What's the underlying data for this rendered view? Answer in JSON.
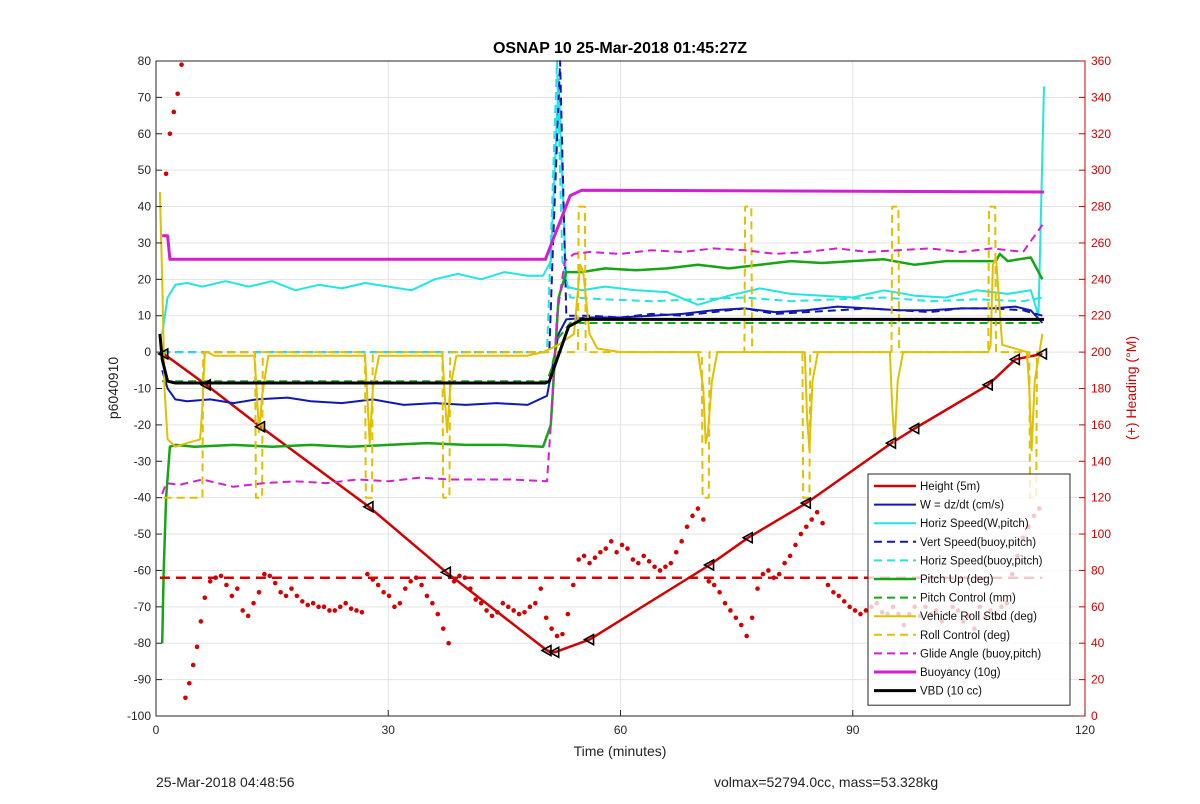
{
  "footer": {
    "timestamp": "25-Mar-2018 04:48:56",
    "volume_mass": "volmax=52794.0cc, mass=53.328kg"
  },
  "chart_data": {
    "type": "line",
    "title": "OSNAP 10 25-Mar-2018 01:45:27Z",
    "xlabel": "Time (minutes)",
    "ylabel_left": "p6040910",
    "ylabel_right": "(+) Heading (°M)",
    "xlim": [
      0,
      120
    ],
    "ylim_left": [
      -100,
      80
    ],
    "ylim_right": [
      0,
      360
    ],
    "xticks": [
      0,
      30,
      60,
      90,
      120
    ],
    "yticks_left": [
      -100,
      -90,
      -80,
      -70,
      -60,
      -50,
      -40,
      -30,
      -20,
      -10,
      0,
      10,
      20,
      30,
      40,
      50,
      60,
      70,
      80
    ],
    "yticks_right": [
      0,
      20,
      40,
      60,
      80,
      100,
      120,
      140,
      160,
      180,
      200,
      220,
      240,
      260,
      280,
      300,
      320,
      340,
      360
    ],
    "grid": true,
    "legend_position": "bottom-right",
    "series": [
      {
        "name": "Height (5m)",
        "color": "#d40000",
        "width": 2.5,
        "dash": "",
        "markers": "triangles",
        "x": [
          1,
          6.5,
          13.5,
          27.5,
          37.5,
          50.5,
          51.5,
          56,
          71.5,
          76.5,
          84,
          95,
          98,
          107.5,
          111,
          114.5
        ],
        "y": [
          -0.5,
          -9,
          -20.5,
          -42.5,
          -60.5,
          -82,
          -82.5,
          -79,
          -58.5,
          -51,
          -41.5,
          -25,
          -21,
          -9,
          -2,
          -0.5
        ]
      },
      {
        "name": "W = dz/dt (cm/s)",
        "color": "#1018b4",
        "width": 2,
        "dash": "",
        "x": [
          0.8,
          1.5,
          2.5,
          4,
          7,
          10,
          13,
          17,
          20,
          24,
          28,
          32,
          36,
          40,
          44,
          48,
          50.5,
          52,
          53,
          56,
          60,
          64,
          68,
          72,
          76,
          80,
          84,
          88,
          92,
          96,
          100,
          104,
          108,
          111,
          113,
          114.5
        ],
        "y": [
          -5,
          -10,
          -13,
          -13.5,
          -13,
          -14,
          -13,
          -12.5,
          -13.5,
          -14,
          -13,
          -14.5,
          -14,
          -14.5,
          -14,
          -14.5,
          -12,
          5,
          9,
          9.5,
          9.5,
          10,
          10.5,
          11.5,
          12,
          11,
          11.5,
          12.5,
          12,
          11.5,
          11.5,
          12,
          12,
          12.5,
          11.5,
          8
        ]
      },
      {
        "name": "Horiz Speed(W,pitch)",
        "color": "#22e4e4",
        "width": 2,
        "dash": "",
        "x": [
          0.8,
          1.5,
          2.5,
          4,
          6,
          9,
          12,
          15,
          18,
          21,
          24,
          27,
          30,
          33,
          36,
          39,
          42,
          45,
          48,
          50,
          51,
          52,
          53,
          55,
          58,
          62,
          66,
          70,
          74,
          78,
          82,
          86,
          90,
          94,
          98,
          102,
          106,
          110,
          113,
          114,
          114.7
        ],
        "y": [
          5,
          15,
          18.5,
          19,
          18,
          19.5,
          18,
          19.5,
          17,
          18.5,
          17.5,
          19,
          18,
          17,
          20,
          21.5,
          20,
          22,
          21,
          21,
          25,
          75,
          18,
          17,
          18,
          17,
          16.5,
          13,
          15.5,
          17.5,
          16,
          15.5,
          15,
          17,
          15.5,
          15,
          17,
          16,
          17,
          10,
          73
        ]
      },
      {
        "name": "Vert Speed(buoy,pitch)",
        "color": "#1018b4",
        "width": 2,
        "dash": "8,5",
        "x": [
          0.8,
          50.8,
          51.3,
          52.2,
          53,
          56,
          60,
          64,
          68,
          72,
          76,
          80,
          84,
          88,
          92,
          96,
          100,
          104,
          108,
          112,
          114.5
        ],
        "y": [
          0,
          0,
          30,
          80,
          10,
          10,
          9.5,
          10.5,
          10,
          11,
          12,
          10.5,
          11,
          11.5,
          12,
          11.5,
          11,
          12,
          12,
          11.5,
          10
        ]
      },
      {
        "name": "Horiz Speed(buoy,pitch)",
        "color": "#22e4e4",
        "width": 2,
        "dash": "8,5",
        "x": [
          0.8,
          50.5,
          51,
          51.8,
          52.5,
          53.5,
          58,
          64,
          70,
          76,
          82,
          88,
          94,
          100,
          106,
          112,
          114.5
        ],
        "y": [
          0,
          0,
          30,
          80,
          25,
          15,
          14.5,
          14,
          14.5,
          15,
          14,
          14.5,
          15,
          14,
          14.5,
          14,
          15
        ]
      },
      {
        "name": "Pitch Up (deg)",
        "color": "#16a516",
        "width": 2.5,
        "dash": "",
        "x": [
          0.8,
          1,
          1.3,
          1.8,
          2.5,
          5,
          10,
          15,
          20,
          25,
          30,
          35,
          40,
          45,
          50,
          51,
          52,
          53,
          55,
          58,
          62,
          66,
          70,
          74,
          78,
          82,
          86,
          90,
          94,
          98,
          102,
          106,
          108.5,
          109,
          110,
          113,
          114.5
        ],
        "y": [
          -80,
          -60,
          -40,
          -26,
          -25.5,
          -26,
          -25.5,
          -26,
          -25.5,
          -26,
          -25.5,
          -25,
          -25.5,
          -25.5,
          -26,
          -20,
          15,
          22,
          22,
          23,
          22.5,
          23,
          24,
          23,
          24,
          25,
          24.5,
          25,
          25.5,
          24,
          25,
          25,
          25,
          27,
          25,
          26,
          20
        ]
      },
      {
        "name": "Pitch Control (mm)",
        "color": "#16a516",
        "width": 2,
        "dash": "8,5",
        "x": [
          0.8,
          50.5,
          51,
          52,
          53.5,
          114.5
        ],
        "y": [
          -8,
          -8,
          -5,
          4,
          8,
          8
        ]
      },
      {
        "name": "Vehicle Roll Stbd (deg)",
        "color": "#e0c000",
        "width": 2,
        "dash": "",
        "x": [
          0.5,
          0.8,
          1.1,
          1.5,
          2.5,
          4,
          5.7,
          6,
          6.3,
          6.7,
          7.5,
          12.7,
          13,
          13.3,
          13.7,
          14.5,
          27,
          27.3,
          27.6,
          28,
          28.8,
          37,
          37.3,
          37.6,
          38,
          38.8,
          48,
          50,
          52,
          54,
          54.8,
          55.2,
          56,
          57,
          60,
          65,
          70,
          70.7,
          71,
          71.3,
          71.8,
          72.5,
          80,
          83.8,
          84.1,
          84.4,
          84.8,
          85.5,
          92,
          94.8,
          95.1,
          95.4,
          95.8,
          96.5,
          106,
          107.5,
          107.8,
          108.1,
          108.5,
          109.3,
          112.5,
          112.8,
          113.1,
          113.5,
          114.5
        ],
        "y": [
          44,
          20,
          -10,
          -24,
          -26,
          -25,
          -24,
          -15,
          0,
          0,
          -1,
          -1,
          -10,
          -22,
          -12,
          -1,
          -1,
          -12,
          -25,
          -10,
          -1,
          -1,
          -12,
          -22,
          -10,
          -1,
          -1,
          0,
          2,
          5,
          24,
          22,
          5,
          1,
          0,
          0,
          0,
          -10,
          -25,
          -22,
          -8,
          0,
          0,
          0,
          -18,
          -27,
          -8,
          0,
          0,
          0,
          -15,
          -25,
          -8,
          0,
          0,
          0,
          2,
          24,
          26,
          2,
          0,
          -10,
          -27,
          -8,
          5
        ]
      },
      {
        "name": "Roll Control (deg)",
        "color": "#e0c000",
        "width": 2,
        "dash": "8,5",
        "x": [
          1,
          6,
          6.1,
          12.8,
          12.9,
          13.7,
          13.8,
          27,
          27.1,
          27.9,
          28,
          37,
          37.1,
          37.9,
          38,
          50,
          52,
          54.5,
          54.6,
          55.4,
          55.5,
          70.5,
          70.6,
          71.4,
          71.5,
          76,
          76.1,
          76.9,
          77,
          83.5,
          83.6,
          84.4,
          84.5,
          95,
          95.1,
          95.9,
          96,
          107.5,
          107.6,
          108.4,
          108.5,
          112.8,
          112.9,
          113.7,
          113.8,
          114.5
        ],
        "y": [
          -40,
          -40,
          0,
          0,
          -40,
          -40,
          0,
          0,
          -40,
          -40,
          0,
          0,
          -40,
          -40,
          0,
          0,
          0,
          0,
          40,
          40,
          0,
          0,
          -40,
          -40,
          0,
          0,
          40,
          40,
          0,
          0,
          -40,
          -40,
          0,
          0,
          40,
          40,
          0,
          0,
          40,
          40,
          0,
          0,
          -40,
          -40,
          0,
          0
        ]
      },
      {
        "name": "Glide Angle (buoy,pitch)",
        "color": "#d21fd2",
        "width": 2,
        "dash": "8,5",
        "x": [
          0.8,
          1.3,
          3,
          6,
          10,
          14,
          18,
          22,
          26,
          30,
          34,
          38,
          42,
          46,
          50.5,
          51,
          51.8,
          52.8,
          54,
          56,
          60,
          64,
          68,
          72,
          76,
          80,
          84,
          88,
          92,
          96,
          100,
          104,
          108,
          112,
          114.5
        ],
        "y": [
          -39,
          -36,
          -36.5,
          -35,
          -37,
          -36,
          -35.5,
          -36,
          -35,
          -35.5,
          -34.5,
          -35,
          -35,
          -35,
          -35.5,
          -20,
          10,
          25,
          27,
          27.5,
          27,
          28,
          27.5,
          28.5,
          28,
          27,
          27.5,
          28.5,
          27.5,
          28,
          28.5,
          27.5,
          28.5,
          27.5,
          35
        ]
      },
      {
        "name": "Buoyancy (10g)",
        "color": "#d21fd2",
        "width": 3,
        "dash": "",
        "x": [
          0.8,
          1.5,
          1.8,
          50.3,
          53.5,
          55,
          114.7
        ],
        "y": [
          32,
          32,
          25.5,
          25.5,
          43,
          44.5,
          44
        ]
      },
      {
        "name": "VBD (10 cc)",
        "color": "#000000",
        "width": 3,
        "dash": "",
        "x": [
          0.5,
          0.8,
          1.5,
          2.5,
          50.3,
          50.8,
          53.3,
          55,
          114.7
        ],
        "y": [
          5,
          -2,
          -8,
          -8.5,
          -8.5,
          -8,
          7,
          9,
          9
        ]
      },
      {
        "name": "",
        "color": "#d40000",
        "width": 2.5,
        "dash": "10,6",
        "x": [
          0.5,
          114.5
        ],
        "y": [
          -62,
          -62
        ]
      }
    ],
    "heading_points": {
      "color": "#d40000",
      "axis": "right",
      "x": [
        1.3,
        1.8,
        2.3,
        2.8,
        3.3,
        3.8,
        4.3,
        4.8,
        5.3,
        5.8,
        6.3,
        7,
        7.7,
        8.4,
        9.1,
        9.8,
        10.5,
        11.2,
        11.9,
        12.6,
        13.3,
        14,
        14.7,
        15.4,
        16.1,
        16.8,
        17.5,
        18.2,
        18.9,
        19.6,
        20.3,
        21,
        21.7,
        22.4,
        23.1,
        23.8,
        24.5,
        25.2,
        25.9,
        26.6,
        27.3,
        28,
        28.7,
        29.4,
        30.1,
        30.8,
        31.5,
        32.2,
        32.9,
        33.6,
        34.3,
        35,
        35.7,
        36.4,
        37.1,
        37.8,
        38.5,
        39.2,
        39.9,
        40.6,
        41.3,
        42,
        42.7,
        43.4,
        44.1,
        44.8,
        45.5,
        46.2,
        46.9,
        47.6,
        48.3,
        49,
        49.7,
        50.4,
        51.1,
        51.8,
        52.5,
        53.2,
        53.9,
        54.6,
        55.3,
        56,
        56.7,
        57.4,
        58.1,
        58.8,
        59.5,
        60.2,
        60.9,
        61.6,
        62.3,
        63,
        63.7,
        64.4,
        65.1,
        65.8,
        66.5,
        67.2,
        67.9,
        68.6,
        69.3,
        70,
        70.7,
        71.4,
        72.1,
        72.8,
        73.5,
        74.2,
        74.9,
        75.6,
        76.3,
        77,
        77.7,
        78.4,
        79.1,
        79.8,
        80.5,
        81.2,
        81.9,
        82.6,
        83.3,
        84,
        84.7,
        85.4,
        86.1,
        86.8,
        87.5,
        88.2,
        88.9,
        89.6,
        90.3,
        91,
        91.7,
        92.4,
        93.1,
        93.8,
        94.5,
        95.2,
        95.9,
        96.6,
        97.3,
        98,
        98.7,
        99.4,
        100.1,
        100.8,
        101.5,
        102.2,
        102.9,
        103.6,
        104.3,
        105,
        105.7,
        106.4,
        107.1,
        107.8,
        108.5,
        109.2,
        109.9,
        110.6,
        111.3,
        112,
        112.7,
        113.4,
        114.1
      ],
      "y": [
        298,
        320,
        332,
        342,
        358,
        10,
        18,
        28,
        38,
        52,
        65,
        74,
        76,
        77,
        72,
        66,
        70,
        58,
        55,
        62,
        68,
        78,
        77,
        73,
        68,
        66,
        70,
        66,
        63,
        61,
        62,
        60,
        60,
        58,
        58,
        60,
        62,
        59,
        58,
        57,
        78,
        75,
        72,
        68,
        66,
        60,
        62,
        70,
        74,
        76,
        72,
        66,
        62,
        56,
        48,
        40,
        74,
        77,
        76,
        70,
        64,
        62,
        58,
        55,
        57,
        62,
        60,
        58,
        56,
        57,
        60,
        62,
        70,
        54,
        48,
        44,
        45,
        56,
        72,
        86,
        88,
        84,
        87,
        90,
        92,
        96,
        90,
        94,
        92,
        86,
        84,
        88,
        85,
        82,
        80,
        82,
        84,
        90,
        96,
        104,
        110,
        114,
        108,
        74,
        72,
        68,
        62,
        58,
        54,
        50,
        44,
        54,
        70,
        78,
        80,
        76,
        78,
        84,
        88,
        94,
        100,
        104,
        108,
        112,
        106,
        72,
        68,
        66,
        63,
        60,
        58,
        56,
        58,
        60,
        62,
        57,
        56,
        60,
        56,
        50,
        56,
        60,
        55,
        60,
        56,
        58,
        52,
        56,
        60,
        58,
        52,
        55,
        48,
        60,
        54,
        58,
        56,
        60,
        62,
        78,
        88,
        98,
        104,
        110,
        114
      ]
    },
    "title_color": "#000000",
    "right_axis_color": "#d40000"
  }
}
